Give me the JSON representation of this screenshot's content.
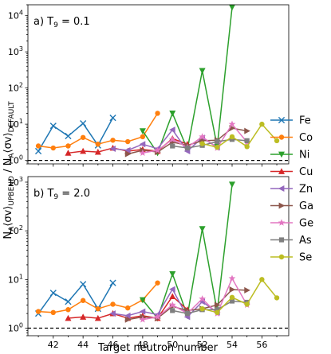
{
  "chart_data": [
    {
      "type": "line",
      "panel_label": "a) T",
      "panel_label_sub": "9",
      "panel_label_value": " = 0.1",
      "xlabel": "Target neutron number",
      "ylabel": "N_A⟨σv⟩_UPBEND / N_A⟨σv⟩_DEFAULT",
      "yscale": "log",
      "ylim": [
        0.8,
        20000
      ],
      "xlim": [
        40.3,
        57.8
      ],
      "y_tick_values": [
        1,
        10,
        100,
        1000,
        10000
      ],
      "x_tick_values": [
        42,
        44,
        46,
        48,
        50,
        52,
        54,
        56
      ],
      "reference_line": 1,
      "series": [
        {
          "name": "Fe",
          "color": "#1f77b4",
          "marker": "x",
          "x": [
            41,
            42,
            43,
            44,
            45,
            46
          ],
          "y": [
            1.8,
            9,
            4.7,
            10.5,
            2.6,
            15
          ]
        },
        {
          "name": "Co",
          "color": "#ff7f0e",
          "marker": "o",
          "x": [
            41,
            42,
            43,
            44,
            45,
            46,
            47,
            48,
            49
          ],
          "y": [
            2.5,
            2.2,
            2.5,
            4.3,
            2.8,
            3.6,
            3.3,
            4.5,
            20
          ]
        },
        {
          "name": "Ni",
          "color": "#2ca02c",
          "marker": "v",
          "x": [
            48,
            49,
            50,
            51,
            52,
            53,
            54
          ],
          "y": [
            6.5,
            1.6,
            20,
            2,
            300,
            2.4,
            17000
          ]
        },
        {
          "name": "Cu",
          "color": "#d62728",
          "marker": "^",
          "x": [
            43,
            44,
            45,
            46,
            47,
            48,
            49,
            50,
            51
          ],
          "y": [
            1.6,
            1.8,
            1.7,
            2.2,
            1.8,
            2,
            1.8,
            4,
            2.8
          ]
        },
        {
          "name": "Zn",
          "color": "#9467bd",
          "marker": "<",
          "x": [
            46,
            47,
            48,
            49,
            50,
            51,
            52,
            53
          ],
          "y": [
            2.1,
            1.9,
            2.8,
            2.1,
            7,
            1.8,
            4.2,
            2.3
          ]
        },
        {
          "name": "Ga",
          "color": "#8c564b",
          "marker": ">",
          "x": [
            47,
            48,
            49,
            50,
            51,
            52,
            53,
            54,
            55
          ],
          "y": [
            1.5,
            1.9,
            1.7,
            3.2,
            2.6,
            3.5,
            3.6,
            7.8,
            6.5
          ]
        },
        {
          "name": "Ge",
          "color": "#e377c2",
          "marker": "*",
          "x": [
            48,
            49,
            50,
            51,
            52,
            53,
            54,
            55
          ],
          "y": [
            1.6,
            1.9,
            3.8,
            2.3,
            4.5,
            2.2,
            10,
            3.2
          ]
        },
        {
          "name": "As",
          "color": "#7f7f7f",
          "marker": "s",
          "x": [
            50,
            51,
            52,
            53,
            54,
            55
          ],
          "y": [
            2.5,
            2.2,
            2.6,
            3.3,
            3.8,
            3.5
          ]
        },
        {
          "name": "Se",
          "color": "#bcbd22",
          "marker": "o",
          "x": [
            52,
            53,
            54,
            55,
            56,
            57
          ],
          "y": [
            2.9,
            2.3,
            4.5,
            2.4,
            10,
            3.5
          ]
        }
      ]
    },
    {
      "type": "line",
      "panel_label": "b) T",
      "panel_label_sub": "9",
      "panel_label_value": " = 2.0",
      "xlabel": "Target neutron number",
      "ylabel": "N_A⟨σv⟩_UPBEND / N_A⟨σv⟩_DEFAULT",
      "yscale": "log",
      "ylim": [
        0.7,
        1300
      ],
      "xlim": [
        40.3,
        57.8
      ],
      "y_tick_values": [
        1,
        10,
        100,
        1000
      ],
      "x_tick_values": [
        42,
        44,
        46,
        48,
        50,
        52,
        54,
        56
      ],
      "reference_line": 1,
      "series": [
        {
          "name": "Fe",
          "color": "#1f77b4",
          "marker": "x",
          "x": [
            41,
            42,
            43,
            44,
            45,
            46
          ],
          "y": [
            2,
            5.3,
            3.5,
            8,
            2.5,
            8.5
          ]
        },
        {
          "name": "Co",
          "color": "#ff7f0e",
          "marker": "o",
          "x": [
            41,
            42,
            43,
            44,
            45,
            46,
            47,
            48,
            49
          ],
          "y": [
            2.2,
            2.1,
            2.4,
            3.7,
            2.5,
            3.1,
            2.6,
            3.8,
            8.5
          ]
        },
        {
          "name": "Ni",
          "color": "#2ca02c",
          "marker": "v",
          "x": [
            48,
            49,
            50,
            51,
            52,
            53,
            54
          ],
          "y": [
            3.8,
            1.6,
            13,
            1.8,
            110,
            2.2,
            900
          ]
        },
        {
          "name": "Cu",
          "color": "#d62728",
          "marker": "^",
          "x": [
            43,
            44,
            45,
            46,
            47,
            48,
            49,
            50,
            51
          ],
          "y": [
            1.6,
            1.7,
            1.6,
            2,
            1.6,
            1.8,
            1.6,
            4.5,
            2.4
          ]
        },
        {
          "name": "Zn",
          "color": "#9467bd",
          "marker": "<",
          "x": [
            46,
            47,
            48,
            49,
            50,
            51,
            52,
            53
          ],
          "y": [
            2,
            1.8,
            2.2,
            1.9,
            6.3,
            1.7,
            3.5,
            2.1
          ]
        },
        {
          "name": "Ga",
          "color": "#8c564b",
          "marker": ">",
          "x": [
            47,
            48,
            49,
            50,
            51,
            52,
            53,
            54,
            55
          ],
          "y": [
            1.5,
            1.7,
            1.6,
            2.8,
            2.3,
            2.5,
            3,
            6.2,
            6
          ]
        },
        {
          "name": "Ge",
          "color": "#e377c2",
          "marker": "*",
          "x": [
            48,
            49,
            50,
            51,
            52,
            53,
            54,
            55
          ],
          "y": [
            1.5,
            1.7,
            3,
            2,
            4,
            2,
            10.5,
            3
          ]
        },
        {
          "name": "As",
          "color": "#7f7f7f",
          "marker": "s",
          "x": [
            50,
            51,
            52,
            53,
            54,
            55
          ],
          "y": [
            2.3,
            2,
            2.4,
            2.4,
            3.6,
            3.4
          ]
        },
        {
          "name": "Se",
          "color": "#bcbd22",
          "marker": "o",
          "x": [
            52,
            53,
            54,
            55,
            56,
            57
          ],
          "y": [
            2.5,
            2.1,
            4.3,
            3.1,
            10,
            4.2
          ]
        }
      ]
    }
  ],
  "legend_placement": "right"
}
